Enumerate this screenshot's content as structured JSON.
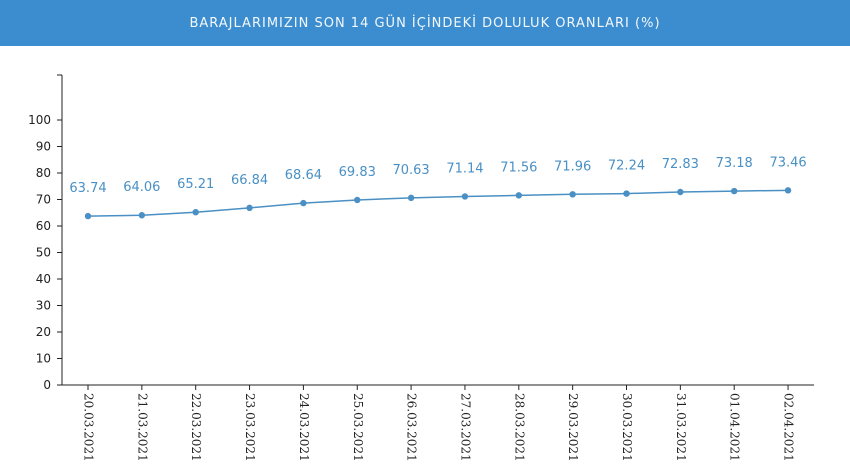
{
  "header": {
    "title": "BARAJLARIMIZIN SON 14 GÜN İÇİNDEKİ DOLULUK ORANLARI (%)"
  },
  "colors": {
    "header_bg": "#3c8dcf",
    "line": "#4a90c4",
    "label": "#4a90c4",
    "axis": "#222222"
  },
  "chart_data": {
    "type": "line",
    "title": "BARAJLARIMIZIN SON 14 GÜN İÇİNDEKİ DOLULUK ORANLARI (%)",
    "xlabel": "",
    "ylabel": "",
    "ylim": [
      0,
      100
    ],
    "yticks": [
      0,
      10,
      20,
      30,
      40,
      50,
      60,
      70,
      80,
      90,
      100
    ],
    "grid": false,
    "categories": [
      "20.03.2021",
      "21.03.2021",
      "22.03.2021",
      "23.03.2021",
      "24.03.2021",
      "25.03.2021",
      "26.03.2021",
      "27.03.2021",
      "28.03.2021",
      "29.03.2021",
      "30.03.2021",
      "31.03.2021",
      "01.04.2021",
      "02.04.2021"
    ],
    "series": [
      {
        "values": [
          63.74,
          64.06,
          65.21,
          66.84,
          68.64,
          69.83,
          70.63,
          71.14,
          71.56,
          71.96,
          72.24,
          72.83,
          73.18,
          73.46
        ]
      }
    ]
  }
}
